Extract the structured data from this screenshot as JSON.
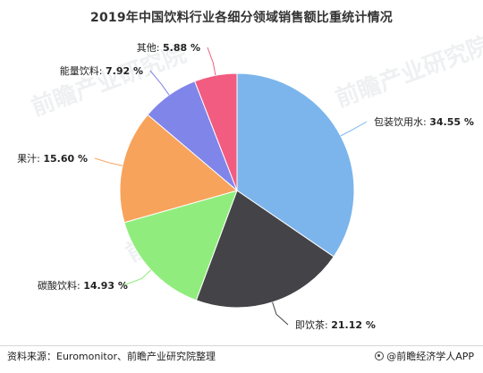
{
  "chart_data": {
    "type": "pie",
    "title": "2019年中国饮料行业各细分领域销售额比重统计情况",
    "categories": [
      "包装饮用水",
      "即饮茶",
      "碳酸饮料",
      "果汁",
      "能量饮料",
      "其他"
    ],
    "values": [
      34.55,
      21.12,
      14.93,
      15.6,
      7.92,
      5.88
    ],
    "value_labels": [
      "34.55 %",
      "21.12 %",
      "14.93 %",
      "15.60 %",
      "7.92 %",
      "5.88 %"
    ],
    "label_separator": ": ",
    "colors": [
      "#7cb5ec",
      "#434348",
      "#90ed7d",
      "#f7a35c",
      "#8085e9",
      "#f15c80"
    ],
    "start_angle_deg": 0,
    "direction": "clockwise"
  },
  "footer": {
    "source": "资料来源：Euromonitor、前瞻产业研究院整理",
    "brand": "@前瞻经济学人APP",
    "brand_icon": "qianzhan-logo-icon"
  },
  "watermarks": [
    "前瞻产业研究院",
    "前瞻产业研究院",
    "前瞻产业研究院"
  ]
}
